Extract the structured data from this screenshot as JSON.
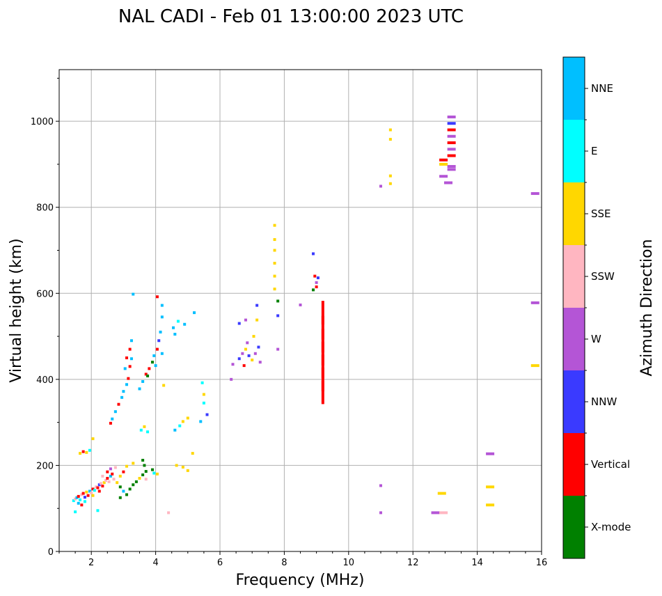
{
  "chart_data": {
    "type": "scatter",
    "title": "NAL CADI - Feb 01 13:00:00 2023 UTC",
    "xlabel": "Frequency (MHz)",
    "ylabel": "Virtual height (km)",
    "xlim": [
      1,
      16
    ],
    "ylim": [
      0,
      1120
    ],
    "xticks": [
      2,
      4,
      6,
      8,
      10,
      12,
      14,
      16
    ],
    "yticks": [
      0,
      200,
      400,
      600,
      800,
      1000
    ],
    "grid": true,
    "colorbar": {
      "label": "Azimuth Direction",
      "categories": [
        "X-mode",
        "Vertical",
        "NNW",
        "W",
        "SSW",
        "SSE",
        "E",
        "NNE"
      ],
      "colors": {
        "X-mode": "#008000",
        "Vertical": "#ff0000",
        "NNW": "#3a3aff",
        "W": "#b455d6",
        "SSW": "#ffb6c1",
        "SSE": "#ffd700",
        "E": "#00ffff",
        "NNE": "#00bfff"
      }
    },
    "points": [
      [
        1.45,
        118,
        "E"
      ],
      [
        1.5,
        122,
        "SSW"
      ],
      [
        1.55,
        125,
        "NNE"
      ],
      [
        1.6,
        128,
        "Vertical"
      ],
      [
        1.65,
        120,
        "E"
      ],
      [
        1.7,
        132,
        "SSW"
      ],
      [
        1.75,
        135,
        "Vertical"
      ],
      [
        1.8,
        126,
        "NNW"
      ],
      [
        1.85,
        138,
        "SSE"
      ],
      [
        1.9,
        130,
        "Vertical"
      ],
      [
        1.95,
        140,
        "NNE"
      ],
      [
        2.0,
        136,
        "SSW"
      ],
      [
        2.05,
        145,
        "Vertical"
      ],
      [
        2.1,
        142,
        "E"
      ],
      [
        2.15,
        150,
        "SSW"
      ],
      [
        2.2,
        148,
        "Vertical"
      ],
      [
        2.25,
        155,
        "NNW"
      ],
      [
        2.3,
        158,
        "SSW"
      ],
      [
        2.35,
        152,
        "Vertical"
      ],
      [
        2.4,
        160,
        "SSE"
      ],
      [
        2.45,
        165,
        "SSW"
      ],
      [
        2.5,
        170,
        "Vertical"
      ],
      [
        2.55,
        162,
        "SSW"
      ],
      [
        2.6,
        175,
        "NNE"
      ],
      [
        2.65,
        180,
        "Vertical"
      ],
      [
        2.7,
        168,
        "SSW"
      ],
      [
        1.5,
        92,
        "E"
      ],
      [
        1.6,
        112,
        "NNE"
      ],
      [
        1.7,
        108,
        "Vertical"
      ],
      [
        1.8,
        116,
        "E"
      ],
      [
        2.2,
        95,
        "E"
      ],
      [
        2.05,
        130,
        "SSE"
      ],
      [
        2.25,
        140,
        "Vertical"
      ],
      [
        2.35,
        175,
        "SSW"
      ],
      [
        2.5,
        185,
        "Vertical"
      ],
      [
        2.6,
        192,
        "W"
      ],
      [
        2.75,
        195,
        "SSW"
      ],
      [
        1.65,
        228,
        "SSE"
      ],
      [
        1.75,
        232,
        "Vertical"
      ],
      [
        1.85,
        230,
        "SSE"
      ],
      [
        1.95,
        235,
        "E"
      ],
      [
        2.05,
        262,
        "SSE"
      ],
      [
        2.6,
        298,
        "Vertical"
      ],
      [
        2.65,
        308,
        "NNE"
      ],
      [
        2.75,
        325,
        "NNE"
      ],
      [
        2.85,
        342,
        "Vertical"
      ],
      [
        2.95,
        358,
        "NNE"
      ],
      [
        3.0,
        372,
        "NNE"
      ],
      [
        3.1,
        388,
        "NNE"
      ],
      [
        3.15,
        402,
        "Vertical"
      ],
      [
        3.05,
        425,
        "NNE"
      ],
      [
        3.2,
        430,
        "Vertical"
      ],
      [
        3.25,
        448,
        "NNE"
      ],
      [
        3.2,
        470,
        "Vertical"
      ],
      [
        3.25,
        490,
        "NNE"
      ],
      [
        3.5,
        378,
        "NNE"
      ],
      [
        3.6,
        395,
        "NNE"
      ],
      [
        3.7,
        412,
        "Vertical"
      ],
      [
        3.8,
        425,
        "Vertical"
      ],
      [
        3.9,
        440,
        "X-mode"
      ],
      [
        3.95,
        455,
        "NNE"
      ],
      [
        4.05,
        470,
        "Vertical"
      ],
      [
        4.1,
        490,
        "NNW"
      ],
      [
        4.15,
        510,
        "NNE"
      ],
      [
        4.2,
        545,
        "NNE"
      ],
      [
        4.05,
        592,
        "Vertical"
      ],
      [
        4.2,
        572,
        "NNE"
      ],
      [
        3.3,
        598,
        "NNE"
      ],
      [
        3.75,
        408,
        "X-mode"
      ],
      [
        4.0,
        432,
        "NNE"
      ],
      [
        4.2,
        460,
        "NNE"
      ],
      [
        3.1,
        450,
        "Vertical"
      ],
      [
        4.25,
        386,
        "SSE"
      ],
      [
        2.9,
        150,
        "X-mode"
      ],
      [
        3.0,
        140,
        "NNE"
      ],
      [
        3.1,
        132,
        "X-mode"
      ],
      [
        3.2,
        145,
        "X-mode"
      ],
      [
        3.3,
        155,
        "X-mode"
      ],
      [
        3.4,
        162,
        "X-mode"
      ],
      [
        3.5,
        170,
        "SSE"
      ],
      [
        3.6,
        178,
        "X-mode"
      ],
      [
        3.7,
        186,
        "X-mode"
      ],
      [
        3.9,
        190,
        "X-mode"
      ],
      [
        2.8,
        160,
        "SSE"
      ],
      [
        2.9,
        175,
        "SSE"
      ],
      [
        3.0,
        185,
        "Vertical"
      ],
      [
        3.1,
        198,
        "SSE"
      ],
      [
        3.3,
        205,
        "SSE"
      ],
      [
        3.6,
        212,
        "X-mode"
      ],
      [
        3.65,
        200,
        "X-mode"
      ],
      [
        3.7,
        168,
        "SSW"
      ],
      [
        3.95,
        182,
        "E"
      ],
      [
        4.05,
        180,
        "SSE"
      ],
      [
        4.4,
        90,
        "SSW"
      ],
      [
        2.9,
        125,
        "X-mode"
      ],
      [
        3.55,
        282,
        "E"
      ],
      [
        3.65,
        290,
        "SSE"
      ],
      [
        3.75,
        278,
        "E"
      ],
      [
        4.6,
        282,
        "NNE"
      ],
      [
        4.75,
        292,
        "E"
      ],
      [
        4.85,
        302,
        "SSE"
      ],
      [
        5.0,
        310,
        "SSE"
      ],
      [
        4.65,
        200,
        "SSE"
      ],
      [
        4.85,
        196,
        "SSE"
      ],
      [
        5.0,
        188,
        "SSE"
      ],
      [
        5.15,
        228,
        "SSE"
      ],
      [
        5.5,
        345,
        "E"
      ],
      [
        5.6,
        318,
        "NNW"
      ],
      [
        5.5,
        365,
        "SSE"
      ],
      [
        5.45,
        392,
        "E"
      ],
      [
        4.55,
        520,
        "NNE"
      ],
      [
        4.7,
        535,
        "E"
      ],
      [
        4.9,
        528,
        "NNE"
      ],
      [
        5.2,
        555,
        "NNE"
      ],
      [
        4.6,
        505,
        "NNE"
      ],
      [
        5.4,
        302,
        "NNE"
      ],
      [
        6.35,
        400,
        "W"
      ],
      [
        6.4,
        435,
        "W"
      ],
      [
        6.6,
        448,
        "NNW"
      ],
      [
        6.7,
        460,
        "W"
      ],
      [
        6.8,
        470,
        "SSE"
      ],
      [
        6.9,
        455,
        "NNW"
      ],
      [
        7.0,
        445,
        "SSE"
      ],
      [
        7.1,
        460,
        "W"
      ],
      [
        7.2,
        475,
        "NNW"
      ],
      [
        6.6,
        530,
        "NNW"
      ],
      [
        6.8,
        538,
        "W"
      ],
      [
        7.15,
        572,
        "NNW"
      ],
      [
        7.05,
        500,
        "SSE"
      ],
      [
        6.75,
        432,
        "Vertical"
      ],
      [
        7.25,
        440,
        "W"
      ],
      [
        6.85,
        485,
        "W"
      ],
      [
        7.15,
        538,
        "SSE"
      ],
      [
        7.7,
        610,
        "SSE"
      ],
      [
        7.7,
        640,
        "SSE"
      ],
      [
        7.7,
        670,
        "SSE"
      ],
      [
        7.7,
        700,
        "SSE"
      ],
      [
        7.7,
        725,
        "SSE"
      ],
      [
        7.7,
        758,
        "SSE"
      ],
      [
        7.8,
        582,
        "X-mode"
      ],
      [
        7.8,
        470,
        "W"
      ],
      [
        7.8,
        548,
        "NNW"
      ],
      [
        8.5,
        573,
        "W"
      ],
      [
        8.9,
        692,
        "NNW"
      ],
      [
        8.9,
        608,
        "X-mode"
      ],
      [
        9.0,
        615,
        "Vertical"
      ],
      [
        9.0,
        625,
        "W"
      ],
      [
        8.95,
        640,
        "Vertical"
      ],
      [
        9.05,
        636,
        "NNW"
      ],
      [
        9.2,
        555,
        "Vertical"
      ],
      [
        9.2,
        520,
        "Vertical"
      ],
      [
        9.2,
        490,
        "Vertical"
      ],
      [
        9.2,
        460,
        "Vertical"
      ],
      [
        9.2,
        430,
        "Vertical"
      ],
      [
        9.2,
        400,
        "Vertical"
      ],
      [
        9.2,
        370,
        "Vertical"
      ],
      [
        11.3,
        980,
        "SSE"
      ],
      [
        11.3,
        958,
        "SSE"
      ],
      [
        11.3,
        873,
        "SSE"
      ],
      [
        11.3,
        855,
        "SSE"
      ],
      [
        11.0,
        849,
        "W"
      ],
      [
        11.0,
        153,
        "W"
      ],
      [
        11.0,
        90,
        "W"
      ],
      [
        12.9,
        135,
        "SSE"
      ],
      [
        12.7,
        90,
        "W"
      ],
      [
        12.95,
        90,
        "SSW"
      ],
      [
        13.2,
        1010,
        "W"
      ],
      [
        13.2,
        995,
        "NNW"
      ],
      [
        13.2,
        980,
        "Vertical"
      ],
      [
        13.2,
        965,
        "W"
      ],
      [
        13.2,
        950,
        "Vertical"
      ],
      [
        13.2,
        935,
        "W"
      ],
      [
        13.2,
        920,
        "Vertical"
      ],
      [
        12.95,
        910,
        "Vertical"
      ],
      [
        12.95,
        900,
        "SSE"
      ],
      [
        13.2,
        895,
        "W"
      ],
      [
        12.95,
        872,
        "W"
      ],
      [
        13.1,
        857,
        "W"
      ],
      [
        13.2,
        888,
        "W"
      ],
      [
        14.4,
        227,
        "W"
      ],
      [
        14.4,
        150,
        "SSE"
      ],
      [
        14.4,
        108,
        "SSE"
      ],
      [
        15.8,
        832,
        "W"
      ],
      [
        15.8,
        578,
        "W"
      ],
      [
        15.8,
        432,
        "SSE"
      ]
    ]
  }
}
